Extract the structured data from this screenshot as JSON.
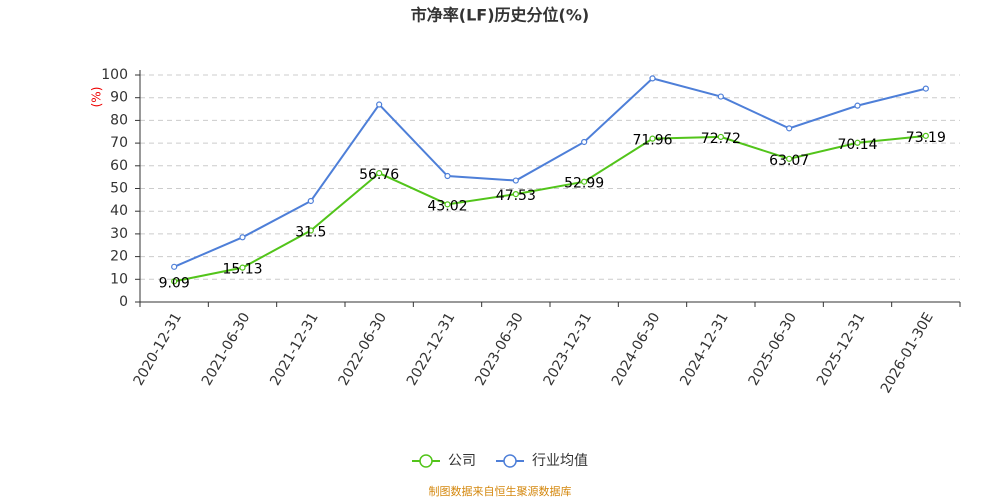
{
  "chart_data": {
    "type": "line",
    "title": "市净率(LF)历史分位(%)",
    "y_label": "(%)",
    "categories": [
      "2020-12-31",
      "2021-06-30",
      "2021-12-31",
      "2022-06-30",
      "2022-12-31",
      "2023-06-30",
      "2023-12-31",
      "2024-06-30",
      "2024-12-31",
      "2025-06-30",
      "2025-12-31",
      "2026-01-30E"
    ],
    "series": [
      {
        "name": "公司",
        "color": "#52c41a",
        "show_labels": true,
        "values": [
          9.09,
          15.13,
          31.5,
          56.76,
          43.02,
          47.53,
          52.99,
          71.96,
          72.72,
          63.07,
          70.14,
          73.19
        ]
      },
      {
        "name": "行业均值",
        "color": "#4e7fd8",
        "show_labels": false,
        "values": [
          15.5,
          28.5,
          44.5,
          87,
          55.5,
          53.5,
          70.5,
          98.5,
          90.5,
          76.5,
          86.5,
          94
        ]
      }
    ],
    "ylim": [
      0,
      100
    ],
    "yticks": [
      0,
      10,
      20,
      30,
      40,
      50,
      60,
      70,
      80,
      90,
      100
    ],
    "grid": true,
    "source": "制图数据来自恒生聚源数据库"
  }
}
